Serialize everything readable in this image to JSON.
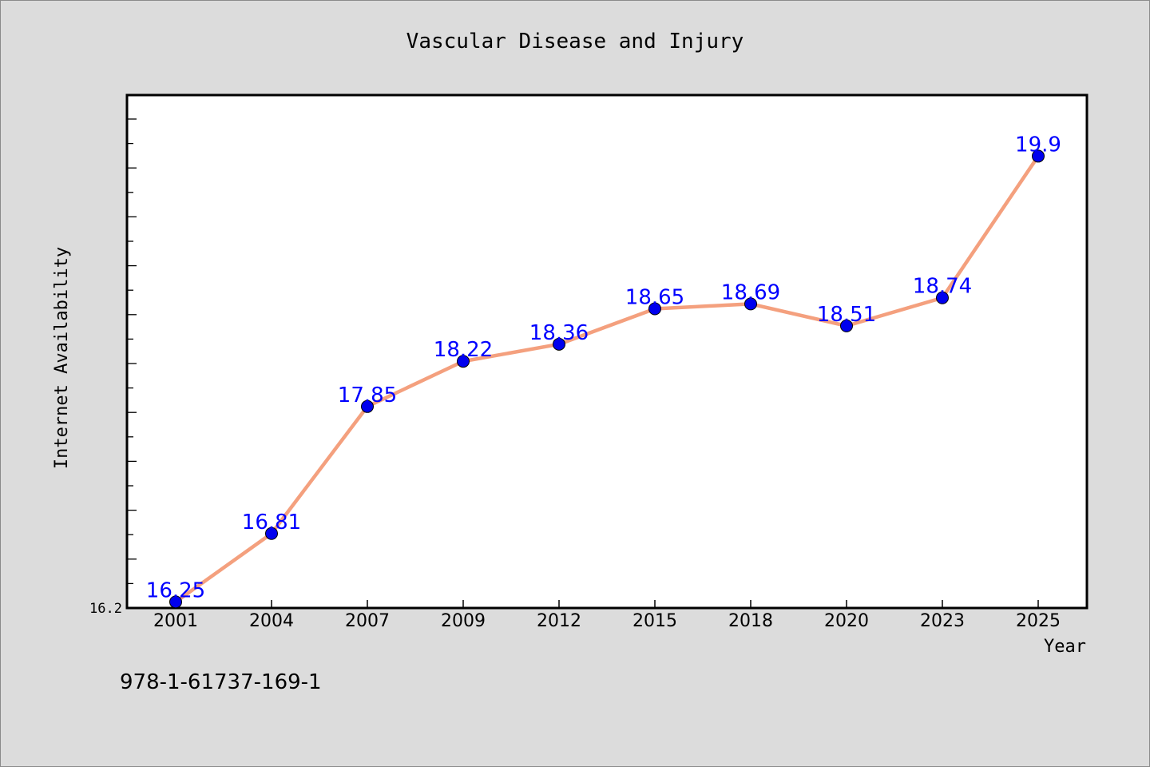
{
  "chart_data": {
    "type": "line",
    "title": "Vascular Disease and Injury",
    "xlabel": "Year",
    "ylabel": "Internet Availability",
    "categories": [
      "2001",
      "2004",
      "2007",
      "2009",
      "2012",
      "2015",
      "2018",
      "2020",
      "2023",
      "2025"
    ],
    "series": [
      {
        "values": [
          16.25,
          16.81,
          17.85,
          18.22,
          18.36,
          18.65,
          18.69,
          18.51,
          18.74,
          19.9
        ],
        "labels": [
          "16.25",
          "16.81",
          "17.85",
          "18.22",
          "18.36",
          "18.65",
          "18.69",
          "18.51",
          "18.74",
          "19.9"
        ],
        "line_color": "#f4a07e",
        "marker_color": "#0000ee",
        "label_color": "#0000ff"
      }
    ],
    "ylim": [
      16.2,
      20.4
    ],
    "y_tick_label": "16.2",
    "grid": false,
    "legend": "none"
  },
  "footer": {
    "isbn": "978-1-61737-169-1"
  }
}
